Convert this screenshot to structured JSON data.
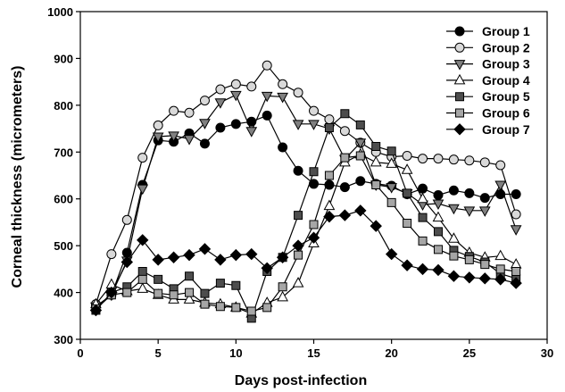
{
  "chart_data": {
    "type": "line",
    "title": "",
    "xlabel": "Days post-infection",
    "ylabel": "Corneal thickness (micrometers)",
    "xlim": [
      0,
      30
    ],
    "ylim": [
      300,
      1000
    ],
    "xticks": [
      0,
      5,
      10,
      15,
      20,
      25,
      30
    ],
    "yticks": [
      300,
      400,
      500,
      600,
      700,
      800,
      900,
      1000
    ],
    "grid": false,
    "legend_position": "top-right",
    "x": [
      1,
      2,
      3,
      4,
      5,
      6,
      7,
      8,
      9,
      10,
      11,
      12,
      13,
      14,
      15,
      16,
      17,
      18,
      19,
      20,
      21,
      22,
      23,
      24,
      25,
      26,
      27,
      28
    ],
    "series": [
      {
        "name": "Group 1",
        "marker": "circle",
        "fill": "#000000",
        "values": [
          370,
          395,
          485,
          630,
          725,
          722,
          740,
          718,
          752,
          760,
          765,
          778,
          710,
          660,
          632,
          630,
          625,
          638,
          632,
          628,
          610,
          622,
          608,
          618,
          612,
          602,
          610,
          610
        ]
      },
      {
        "name": "Group 2",
        "marker": "circle",
        "fill": "#d9d9d9",
        "values": [
          375,
          482,
          555,
          688,
          757,
          788,
          784,
          810,
          834,
          845,
          840,
          885,
          845,
          827,
          788,
          770,
          745,
          720,
          700,
          690,
          692,
          686,
          686,
          684,
          682,
          678,
          672,
          567
        ]
      },
      {
        "name": "Group 3",
        "marker": "triangle-down",
        "fill": "#808080",
        "values": [
          370,
          395,
          468,
          622,
          733,
          735,
          728,
          762,
          806,
          822,
          745,
          820,
          818,
          760,
          760,
          750,
          685,
          720,
          630,
          625,
          612,
          588,
          590,
          580,
          575,
          575,
          630,
          535
        ]
      },
      {
        "name": "Group 4",
        "marker": "triangle-up",
        "fill": "#ffffff",
        "values": [
          375,
          417,
          403,
          408,
          395,
          385,
          385,
          378,
          375,
          368,
          355,
          378,
          390,
          420,
          505,
          585,
          678,
          695,
          678,
          675,
          662,
          600,
          560,
          515,
          485,
          475,
          478,
          460
        ]
      },
      {
        "name": "Group 5",
        "marker": "square",
        "fill": "#4d4d4d",
        "values": [
          362,
          400,
          412,
          445,
          428,
          408,
          435,
          398,
          420,
          415,
          345,
          445,
          475,
          565,
          658,
          752,
          782,
          758,
          712,
          702,
          612,
          560,
          530,
          490,
          477,
          465,
          440,
          430
        ]
      },
      {
        "name": "Group 6",
        "marker": "square",
        "fill": "#a6a6a6",
        "values": [
          365,
          395,
          400,
          428,
          398,
          395,
          400,
          375,
          370,
          368,
          360,
          368,
          412,
          480,
          545,
          650,
          688,
          692,
          630,
          592,
          548,
          510,
          492,
          478,
          470,
          460,
          450,
          445
        ]
      },
      {
        "name": "Group 7",
        "marker": "diamond",
        "fill": "#000000",
        "values": [
          362,
          400,
          465,
          512,
          470,
          475,
          480,
          493,
          470,
          480,
          482,
          452,
          475,
          500,
          517,
          562,
          565,
          575,
          542,
          482,
          458,
          450,
          448,
          435,
          432,
          430,
          428,
          420
        ]
      }
    ]
  }
}
